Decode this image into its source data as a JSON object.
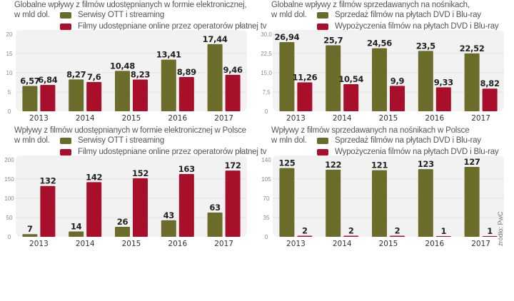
{
  "colors": {
    "green": "#6b6b2a",
    "red": "#a80f2a",
    "panel_bg": "#f2f2f2",
    "grid": "#e2e2e2"
  },
  "source": "źródło: PwC",
  "chart_data": [
    {
      "type": "bar",
      "title": "Globalne wpływy z filmów udostępnianych w formie elektronicznej,",
      "unit": "w mld dol.",
      "categories": [
        "2013",
        "2014",
        "2015",
        "2016",
        "2017"
      ],
      "series": [
        {
          "name": "Serwisy OTT i streaming",
          "color": "#6b6b2a",
          "values": [
            6.57,
            8.27,
            10.48,
            13.41,
            17.44
          ],
          "labels": [
            "6,57",
            "8,27",
            "10,48",
            "13,41",
            "17,44"
          ]
        },
        {
          "name": "Filmy udostępniane online przez operatorów płatnej tv",
          "color": "#a80f2a",
          "values": [
            6.84,
            7.6,
            8.23,
            8.89,
            9.46
          ],
          "labels": [
            "6,84",
            "7,6",
            "8,23",
            "8,89",
            "9,46"
          ]
        }
      ],
      "yticks": [
        "0",
        "5",
        "10",
        "15",
        "20"
      ],
      "ylim": [
        0,
        20
      ],
      "grid": true,
      "legend": "top"
    },
    {
      "type": "bar",
      "title": "Globalne wpływy z filmów sprzedawanych na nośnikach,",
      "unit": "w mld dol.",
      "categories": [
        "2013",
        "2014",
        "2015",
        "2016",
        "2017"
      ],
      "series": [
        {
          "name": "Sprzedaż filmów na płytach DVD i Blu-ray",
          "color": "#6b6b2a",
          "values": [
            26.94,
            25.7,
            24.56,
            23.5,
            22.52
          ],
          "labels": [
            "26,94",
            "25,7",
            "24,56",
            "23,5",
            "22,52"
          ]
        },
        {
          "name": "Wypożyczenia filmów na płytach DVD i Blu-ray",
          "color": "#a80f2a",
          "values": [
            11.26,
            10.54,
            9.9,
            9.33,
            8.82
          ],
          "labels": [
            "11,26",
            "10,54",
            "9,9",
            "9,33",
            "8,82"
          ]
        }
      ],
      "yticks": [
        "0",
        "7,5",
        "15,0",
        "22,5",
        "30,0"
      ],
      "ylim": [
        0,
        30
      ],
      "grid": true,
      "legend": "top"
    },
    {
      "type": "bar",
      "title": "Wpływy z filmów udostępnianych w formie elektronicznej w Polsce",
      "unit": "w mln dol.",
      "categories": [
        "2013",
        "2014",
        "2015",
        "2016",
        "2017"
      ],
      "series": [
        {
          "name": "Serwisy OTT i streaming",
          "color": "#6b6b2a",
          "values": [
            7,
            14,
            26,
            43,
            63
          ],
          "labels": [
            "7",
            "14",
            "26",
            "43",
            "63"
          ]
        },
        {
          "name": "Filmy udostępniane online przez operatorów płatnej tv",
          "color": "#a80f2a",
          "values": [
            132,
            142,
            152,
            163,
            172
          ],
          "labels": [
            "132",
            "142",
            "152",
            "163",
            "172"
          ]
        }
      ],
      "yticks": [
        "0",
        "50",
        "100",
        "150",
        "200"
      ],
      "ylim": [
        0,
        200
      ],
      "grid": true,
      "legend": "top"
    },
    {
      "type": "bar",
      "title": "Wpływy z filmów sprzedawanych na nośnikach w Polsce",
      "unit": "w mln dol.",
      "categories": [
        "2013",
        "2014",
        "2015",
        "2016",
        "2017"
      ],
      "series": [
        {
          "name": "Sprzedaż filmów na płytach DVD i Blu-ray",
          "color": "#6b6b2a",
          "values": [
            125,
            122,
            121,
            123,
            127
          ],
          "labels": [
            "125",
            "122",
            "121",
            "123",
            "127"
          ]
        },
        {
          "name": "Wypożyczenia filmów na płytach DVD i Blu-ray",
          "color": "#a80f2a",
          "values": [
            2,
            2,
            2,
            1,
            1
          ],
          "labels": [
            "2",
            "2",
            "2",
            "1",
            "1"
          ]
        }
      ],
      "yticks": [
        "0",
        "35",
        "70",
        "105",
        "140"
      ],
      "ylim": [
        0,
        140
      ],
      "grid": true,
      "legend": "top"
    }
  ]
}
